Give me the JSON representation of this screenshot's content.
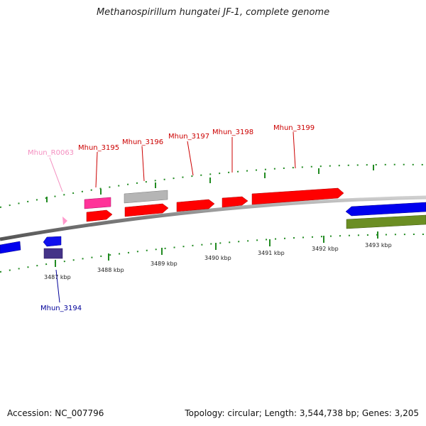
{
  "title": "Methanospirillum hungatei JF-1, complete genome",
  "footer": {
    "accession": "Accession: NC_007796",
    "summary": "Topology: circular; Length: 3,544,738 bp; Genes: 3,205"
  },
  "axis": {
    "ticks": [
      "3487 kbp",
      "3488 kbp",
      "3489 kbp",
      "3490 kbp",
      "3491 kbp",
      "3492 kbp",
      "3493 kbp"
    ]
  },
  "gene_labels": [
    {
      "id": "Mhun_R0063",
      "color": "#f48fc0"
    },
    {
      "id": "Mhun_3195",
      "color": "#cc0000"
    },
    {
      "id": "Mhun_3196",
      "color": "#cc0000"
    },
    {
      "id": "Mhun_3197",
      "color": "#cc0000"
    },
    {
      "id": "Mhun_3198",
      "color": "#cc0000"
    },
    {
      "id": "Mhun_3199",
      "color": "#cc0000"
    },
    {
      "id": "Mhun_3194",
      "color": "#000099"
    }
  ],
  "colors": {
    "forward_gene": "#ff0000",
    "reverse_gene": "#0000ff",
    "rna_gene": "#ff3399",
    "pseudo_gene": "#aaaaaa",
    "dark_reverse": "#443388",
    "other_feature": "#66881e",
    "tick": "#228b22",
    "backbone": "#888888"
  }
}
